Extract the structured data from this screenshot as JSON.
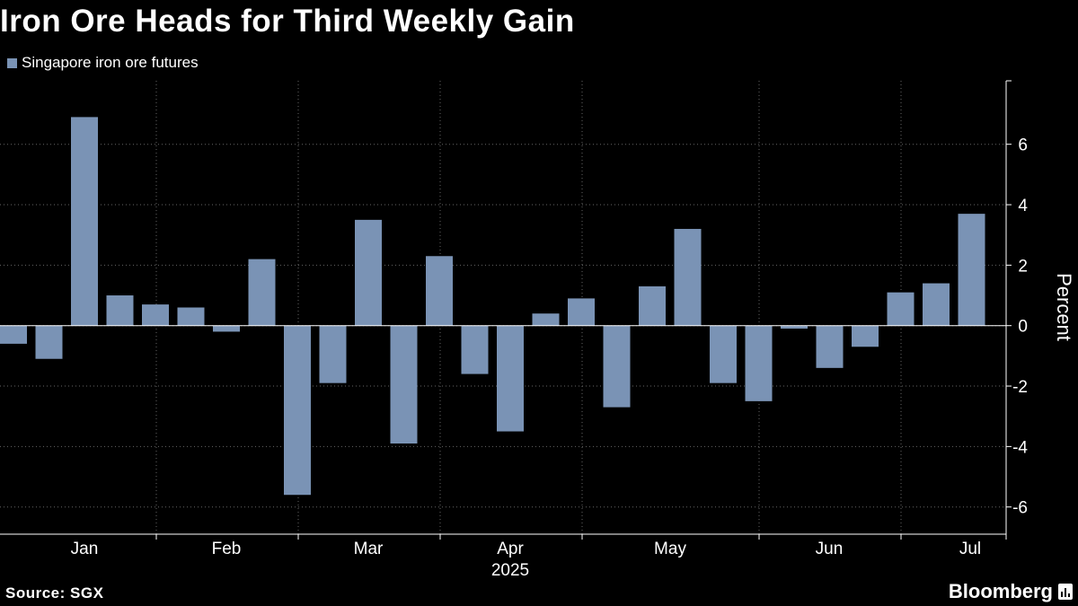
{
  "title": "Iron Ore Heads for Third Weekly Gain",
  "source": "Source: SGX",
  "brand": "Bloomberg",
  "brand_icon": "bloomberg-chart-icon",
  "colors": {
    "background": "#000000",
    "bar": "#7a93b5",
    "grid": "#666666",
    "text": "#ffffff"
  },
  "chart_data": {
    "type": "bar",
    "legend_position": "top-left",
    "grid": true,
    "title": "Iron Ore Heads for Third Weekly Gain",
    "xlabel": "",
    "ylabel": "Percent",
    "ylim": [
      -6.9,
      8.1
    ],
    "yticks": [
      -6,
      -4,
      -2,
      0,
      2,
      4,
      6
    ],
    "year_label": "2025",
    "month_labels": [
      "Jan",
      "Feb",
      "Mar",
      "Apr",
      "May",
      "Jun",
      "Jul"
    ],
    "series": [
      {
        "name": "Singapore iron ore futures",
        "values": [
          -0.6,
          -1.1,
          6.9,
          1.0,
          0.7,
          0.6,
          -0.2,
          2.2,
          -5.6,
          -1.9,
          3.5,
          -3.9,
          2.3,
          -1.6,
          -3.5,
          0.4,
          0.9,
          -2.7,
          1.3,
          3.2,
          -1.9,
          -2.5,
          -0.1,
          -1.4,
          -0.7,
          1.1,
          1.4,
          3.7
        ]
      }
    ]
  }
}
